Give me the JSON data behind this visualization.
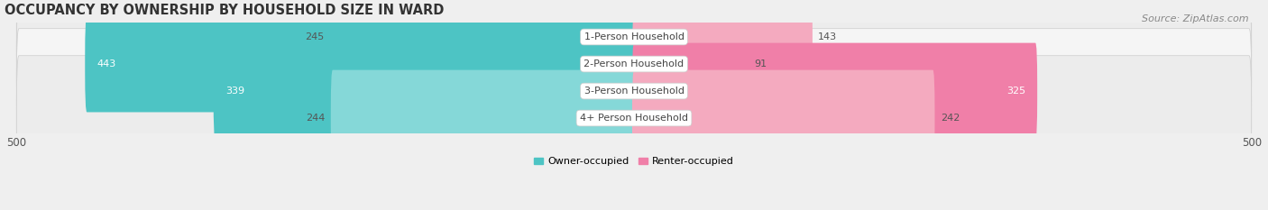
{
  "title": "OCCUPANCY BY OWNERSHIP BY HOUSEHOLD SIZE IN WARD",
  "source": "Source: ZipAtlas.com",
  "categories": [
    "1-Person Household",
    "2-Person Household",
    "3-Person Household",
    "4+ Person Household"
  ],
  "owner_values": [
    245,
    443,
    339,
    244
  ],
  "renter_values": [
    143,
    91,
    325,
    242
  ],
  "owner_color": "#4DC4C4",
  "renter_color": "#F07FA8",
  "owner_color_light": "#85D8D8",
  "renter_color_light": "#F4AABF",
  "axis_max": 500,
  "background_color": "#EFEFEF",
  "bar_bg_color": "#E2E2E2",
  "bar_bg_color2": "#DCDCDC",
  "title_fontsize": 10.5,
  "source_fontsize": 8,
  "tick_fontsize": 8.5,
  "label_fontsize": 8,
  "bar_height": 0.62,
  "legend_labels": [
    "Owner-occupied",
    "Renter-occupied"
  ],
  "row_colors": [
    "#F5F5F5",
    "#ECECEC",
    "#F5F5F5",
    "#ECECEC"
  ]
}
